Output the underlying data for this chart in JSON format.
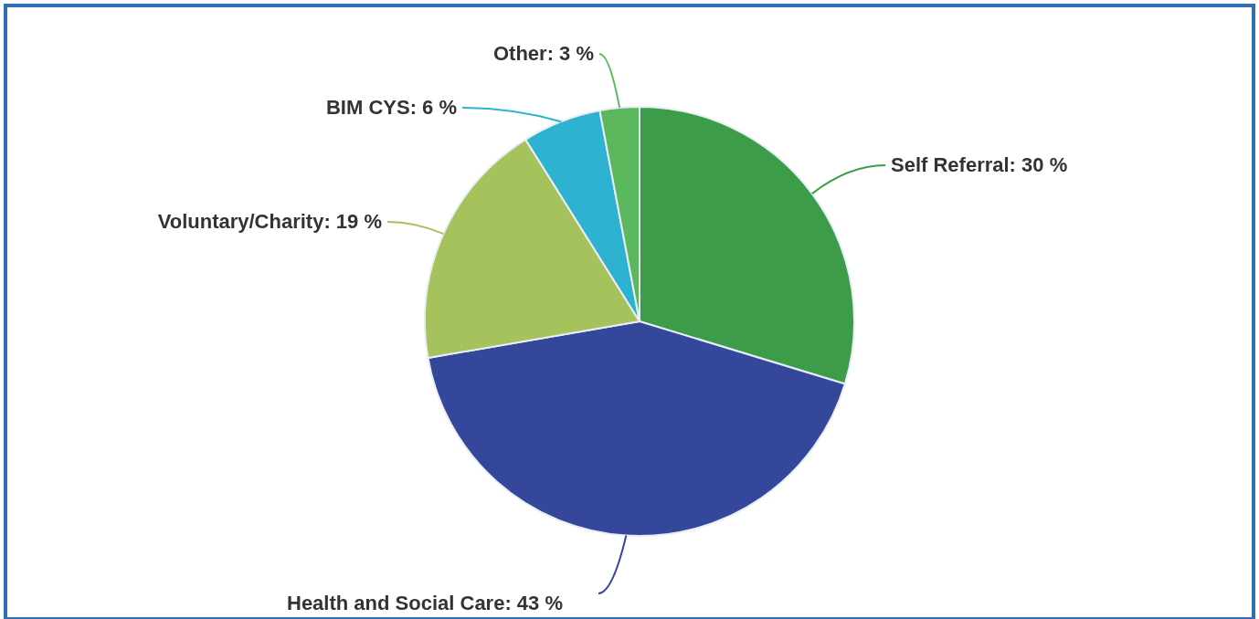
{
  "chart_data": {
    "type": "pie",
    "categories": [
      "Self Referral",
      "Health and Social Care",
      "Voluntary/Charity",
      "BIM CYS",
      "Other"
    ],
    "values": [
      30,
      43,
      19,
      6,
      3
    ],
    "value_labels": [
      "30 %",
      "43 %",
      "19 %",
      "6 %",
      "3 %"
    ],
    "colors": [
      "#3c9c4a",
      "#34479b",
      "#a5c25c",
      "#2eb2d2",
      "#5cb85c"
    ]
  }
}
